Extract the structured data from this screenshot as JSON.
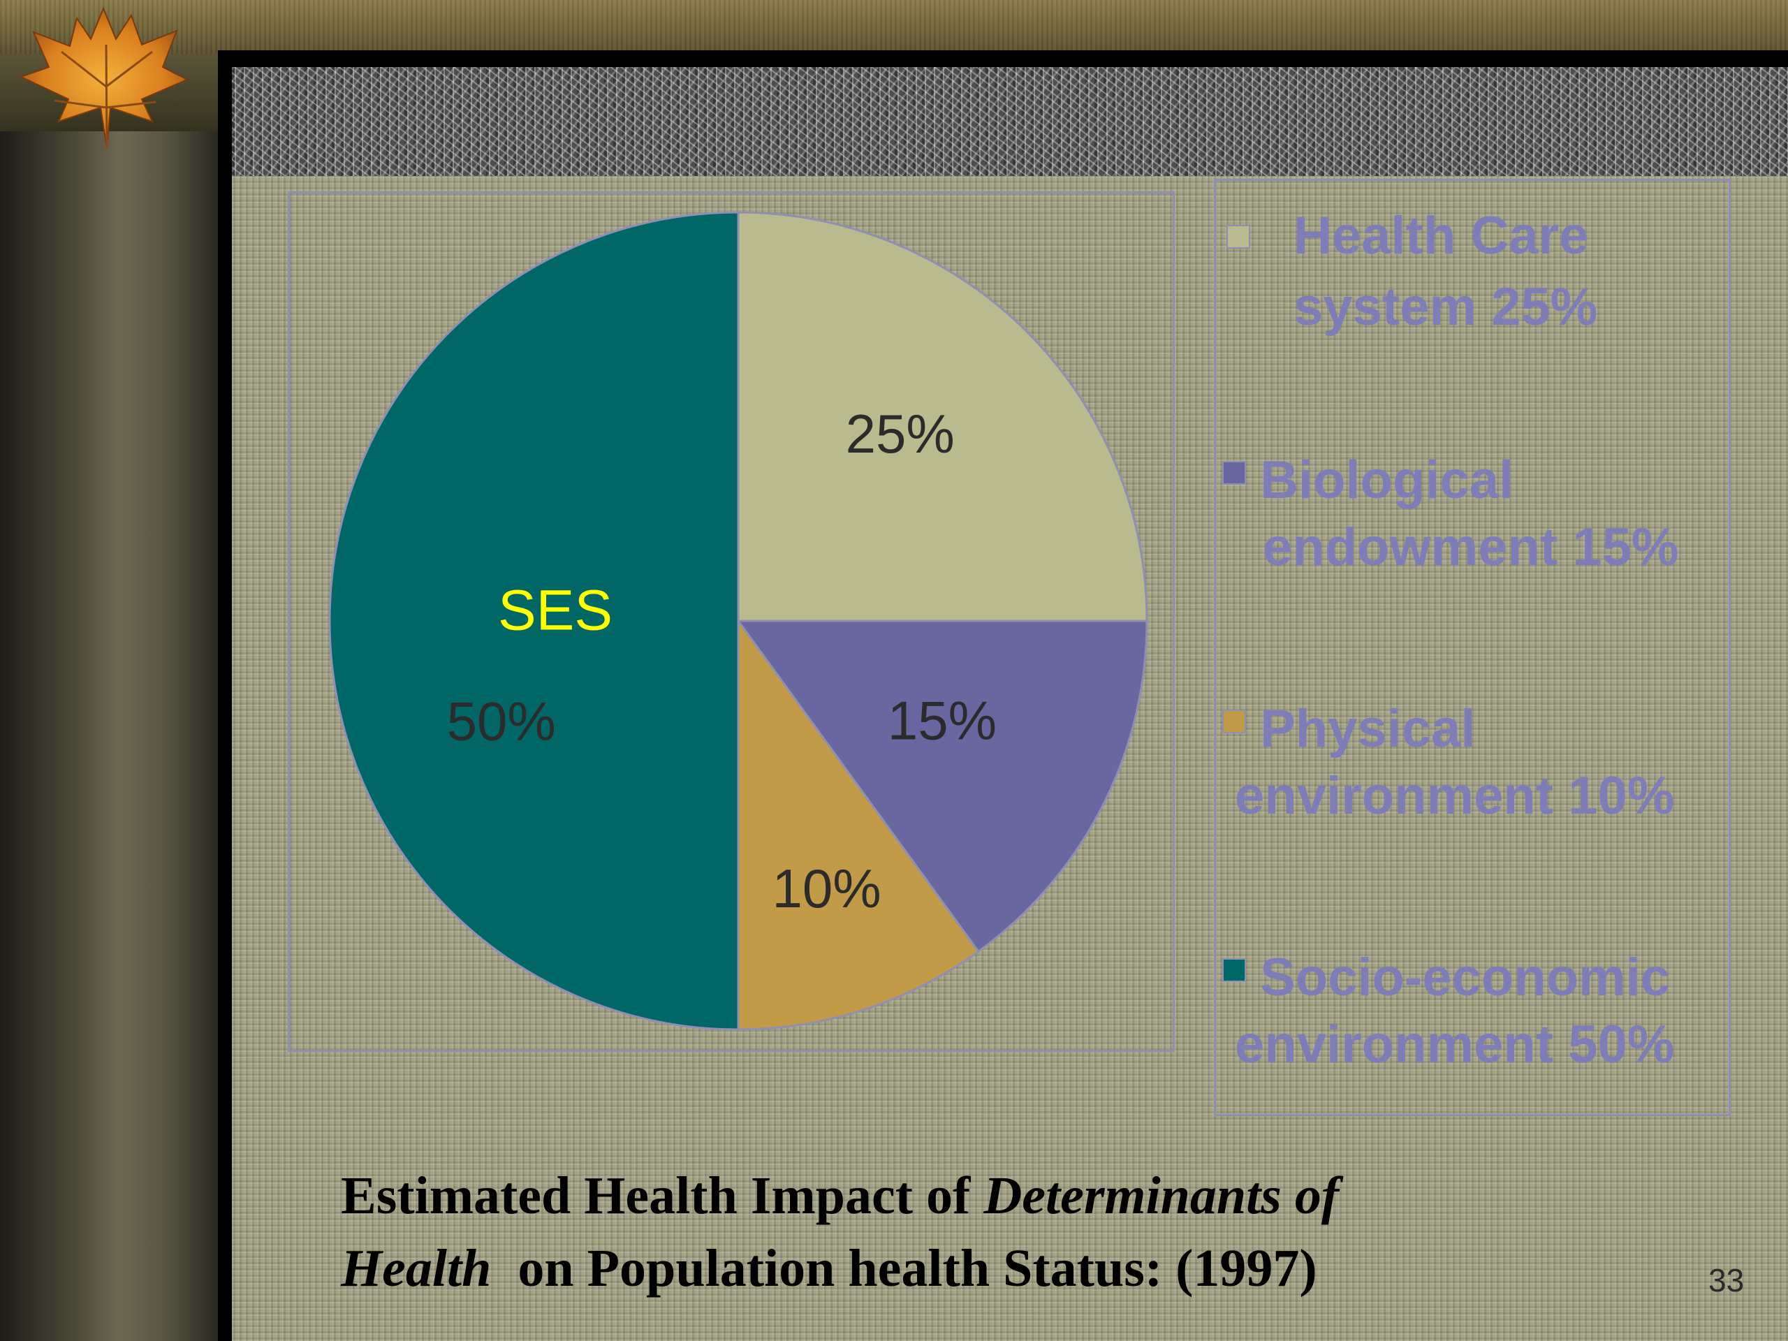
{
  "chart_data": {
    "type": "pie",
    "title": "",
    "slices": [
      {
        "label": "Health Care system 25%",
        "value": 25,
        "data_label": "25%",
        "color": "#b9ba8e"
      },
      {
        "label": "Biological endowment 15%",
        "value": 15,
        "data_label": "15%",
        "color": "#68679f"
      },
      {
        "label": "Physical environment 10%",
        "value": 10,
        "data_label": "10%",
        "color": "#c19b48"
      },
      {
        "label": "Socio-economic environment 50%",
        "value": 50,
        "data_label": "50%",
        "color": "#006666"
      }
    ],
    "annotation": "SES",
    "legend_placement": "right"
  },
  "legend": {
    "items": [
      {
        "line1": "Health Care",
        "line2": "system 25%"
      },
      {
        "line1": "Biological",
        "line2": "endowment 15%"
      },
      {
        "line1": "Physical",
        "line2": "environment 10%"
      },
      {
        "line1": "Socio-economic",
        "line2": "environment 50%"
      }
    ]
  },
  "caption": {
    "part1": "Estimated Health Impact of ",
    "italic1": "Determinants of",
    "italic2": "Health",
    "part2": "  on Population health Status: (1997)"
  },
  "slide_number": "33",
  "colors": {
    "legend_text": "#7e7db8",
    "annotation": "#ffff00",
    "data_label": "#2b2b2b"
  }
}
